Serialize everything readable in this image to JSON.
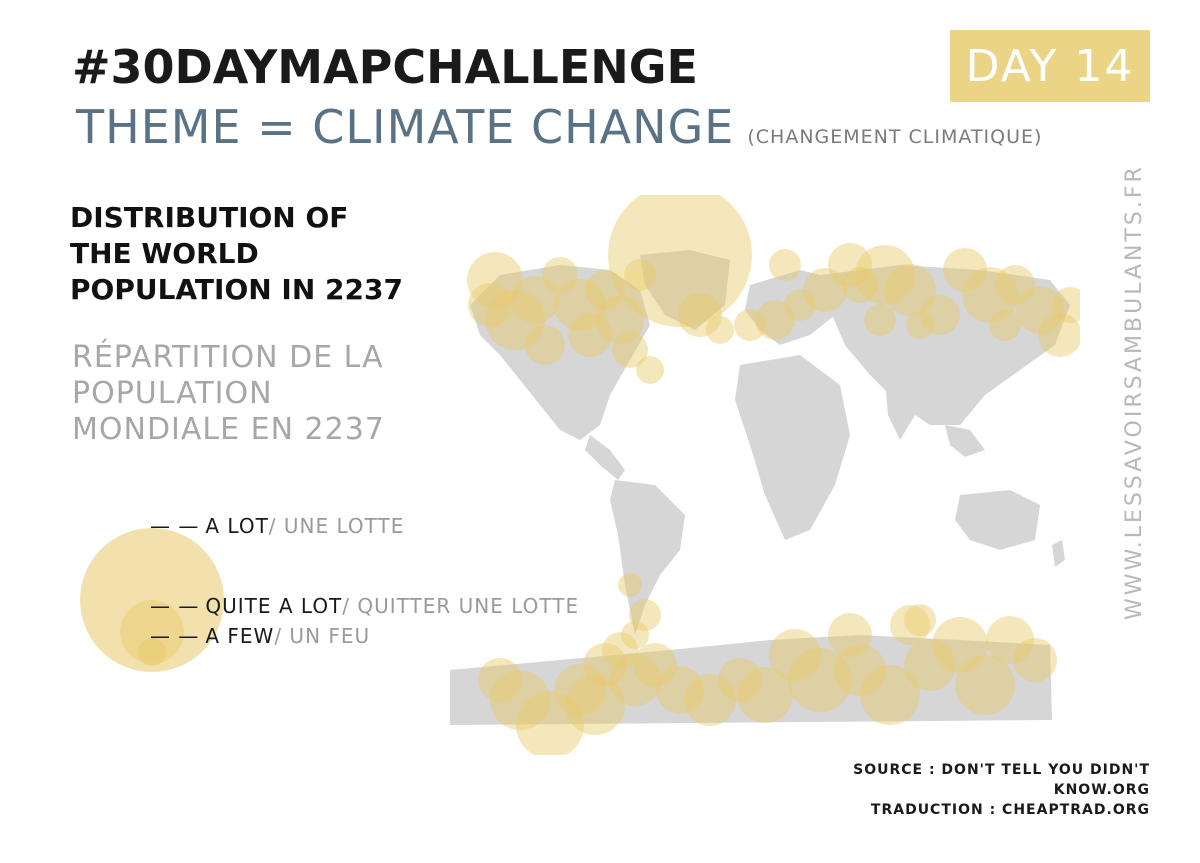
{
  "header": {
    "title": "#30DAYMAPCHALLENGE",
    "theme": "THEME = CLIMATE CHANGE",
    "theme_fr": "(CHANGEMENT CLIMATIQUE)",
    "day": "DAY 14"
  },
  "subtitle": {
    "en": "DISTRIBUTION OF THE WORLD POPULATION IN 2237",
    "fr": "RÉPARTITION DE LA POPULATION MONDIALE EN 2237"
  },
  "legend": {
    "items": [
      {
        "en": "A LOT",
        "fr": "/ UNE LOTTE"
      },
      {
        "en": "QUITE A LOT",
        "fr": "/ QUITTER UNE LOTTE"
      },
      {
        "en": "A FEW",
        "fr": "/ UN FEU"
      }
    ]
  },
  "credits": {
    "source": "SOURCE : DON'T TELL YOU DIDN'T KNOW.ORG",
    "translation": "TRADUCTION : CHEAPTRAD.ORG",
    "site": "WWW.LESSAVOIRSAMBULANTS.FR"
  },
  "colors": {
    "land": "#d6d6d6",
    "bubble": "#e8c96a",
    "theme": "#5a7285",
    "day_box": "#ecd487"
  }
}
